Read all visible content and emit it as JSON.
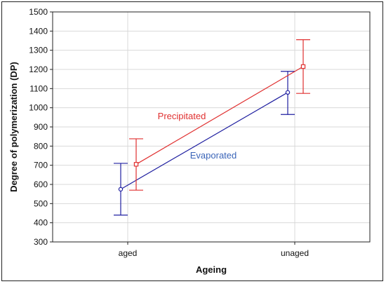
{
  "chart_data": {
    "type": "line",
    "title": "",
    "xlabel": "Ageing",
    "ylabel": "Degree of polymerization (DP)",
    "categories": [
      "aged",
      "unaged"
    ],
    "ylim": [
      300,
      1500
    ],
    "yticks": [
      300,
      400,
      500,
      600,
      700,
      800,
      900,
      1000,
      1100,
      1200,
      1300,
      1400,
      1500
    ],
    "grid": true,
    "series": [
      {
        "name": "Evaporated",
        "color": "#1f1fa0",
        "marker": "circle",
        "values": [
          575,
          1080
        ],
        "err_low": [
          440,
          965
        ],
        "err_high": [
          710,
          1190
        ]
      },
      {
        "name": "Precipitated",
        "color": "#e03030",
        "marker": "square",
        "values": [
          705,
          1215
        ],
        "err_low": [
          570,
          1075
        ],
        "err_high": [
          838,
          1355
        ]
      }
    ],
    "annotations": [
      {
        "text": "Precipitated",
        "color": "#e03030"
      },
      {
        "text": "Evaporated",
        "color": "#3a64b8"
      }
    ]
  }
}
